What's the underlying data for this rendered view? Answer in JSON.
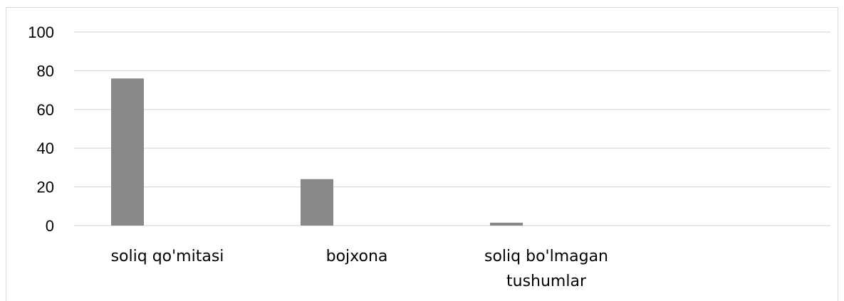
{
  "chart_data": {
    "type": "bar",
    "categories": [
      "soliq qo'mitasi",
      "bojxona",
      "soliq bo'lmagan tushumlar"
    ],
    "category_label_lines": [
      [
        "soliq qo'mitasi"
      ],
      [
        "bojxona"
      ],
      [
        "soliq bo'lmagan",
        "tushumlar"
      ]
    ],
    "values": [
      76,
      24,
      1.5
    ],
    "ylim": [
      0,
      100
    ],
    "yticks": [
      0,
      20,
      40,
      60,
      80,
      100
    ],
    "grid": true,
    "legend": "none",
    "bar_color": "#888888",
    "grid_color": "#d9d9d9"
  }
}
